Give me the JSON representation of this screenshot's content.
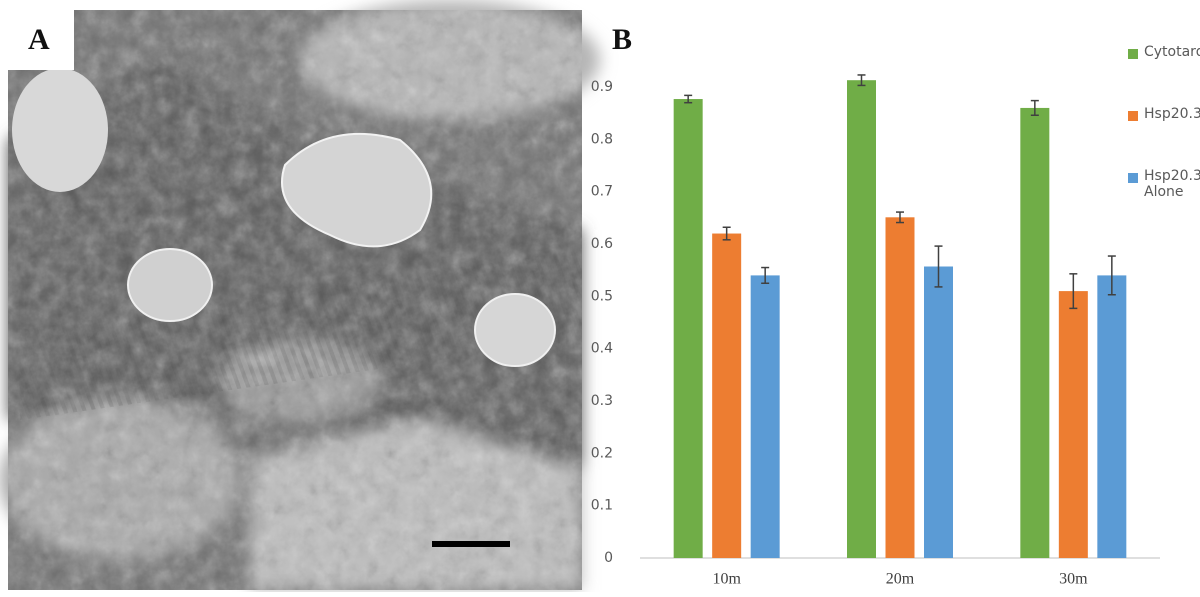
{
  "panel_labels": [
    "A",
    "B"
  ],
  "chart_data": {
    "type": "bar",
    "categories": [
      "10m",
      "20m",
      "30m"
    ],
    "series": [
      {
        "name": "Cytotardin",
        "color": "#70ad47",
        "values": [
          0.877,
          0.913,
          0.86
        ],
        "errors": [
          0.007,
          0.01,
          0.014
        ]
      },
      {
        "name": "Hsp20.3",
        "color": "#ed7d31",
        "values": [
          0.62,
          0.651,
          0.51
        ],
        "errors": [
          0.012,
          0.01,
          0.033
        ]
      },
      {
        "name": "Hsp20.3 Alone",
        "color": "#5b9bd5",
        "values": [
          0.54,
          0.557,
          0.54
        ],
        "errors": [
          0.015,
          0.039,
          0.037
        ]
      }
    ],
    "ylim": [
      0,
      0.9
    ],
    "yticks": [
      0,
      0.1,
      0.2,
      0.3,
      0.4,
      0.5,
      0.6,
      0.7,
      0.8,
      0.9
    ],
    "grid": false,
    "legend": "right"
  }
}
